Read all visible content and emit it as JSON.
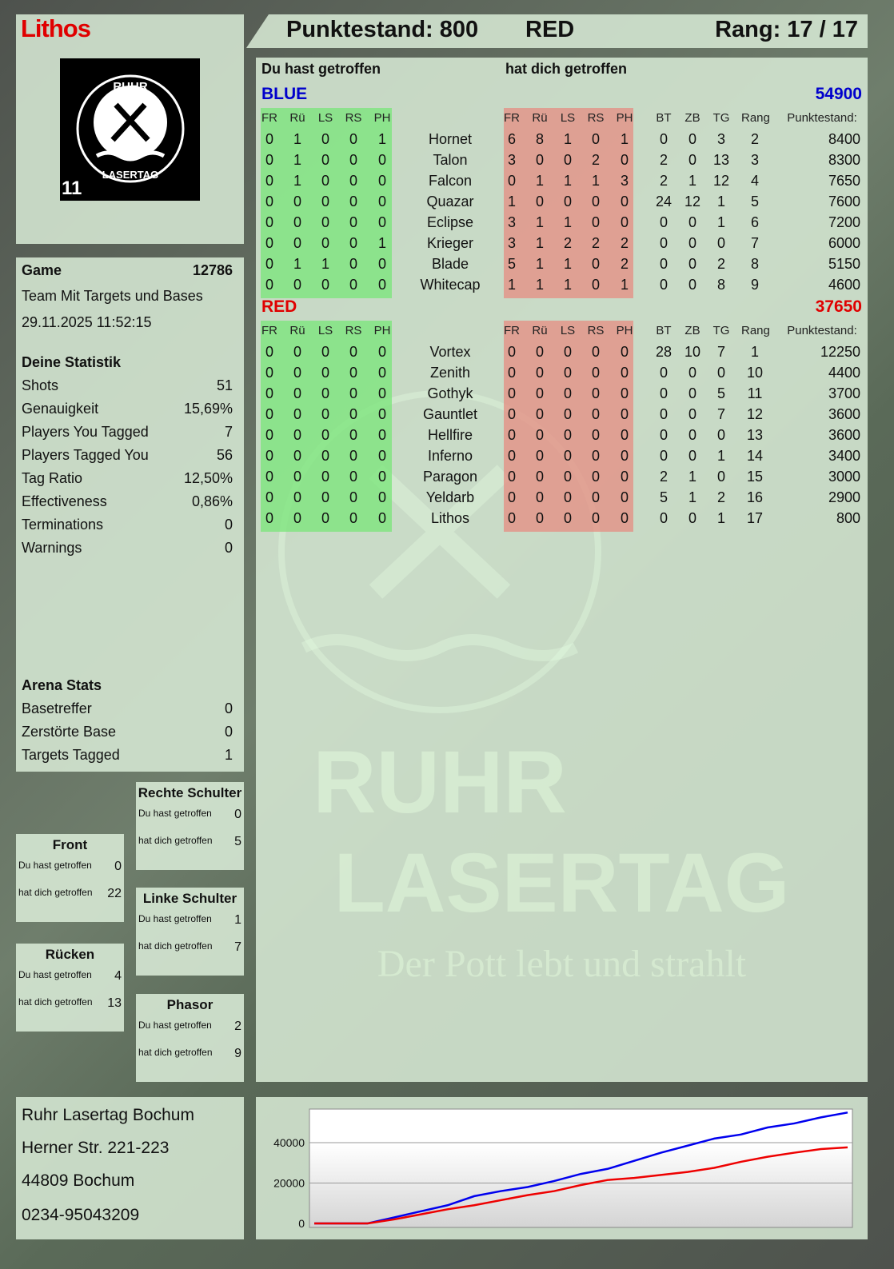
{
  "player": {
    "name": "Lithos",
    "logo_text": "RUHR LASERTAG",
    "logo_number": "11"
  },
  "header": {
    "score_label": "Punktestand: 800",
    "team": "RED",
    "rank_label": "Rang: 17 / 17"
  },
  "columns": {
    "hit_you": "Du hast getroffen",
    "hit_by": "hat dich getroffen",
    "zones": [
      "FR",
      "Rü",
      "LS",
      "RS",
      "PH"
    ],
    "stats": [
      "BT",
      "ZB",
      "TG",
      "Rang"
    ],
    "score": "Punktestand:"
  },
  "colors": {
    "blue": "#0000cc",
    "red": "#e00000",
    "green_block": "#78e678",
    "red_block": "#e68c82"
  },
  "teams": [
    {
      "name": "BLUE",
      "total": "54900",
      "color": "#0000cc",
      "players": [
        {
          "name": "Hornet",
          "you": [
            0,
            1,
            0,
            0,
            1
          ],
          "them": [
            6,
            8,
            1,
            0,
            1
          ],
          "stats": [
            0,
            0,
            3,
            2
          ],
          "score": "8400"
        },
        {
          "name": "Talon",
          "you": [
            0,
            1,
            0,
            0,
            0
          ],
          "them": [
            3,
            0,
            0,
            2,
            0
          ],
          "stats": [
            2,
            0,
            13,
            3
          ],
          "score": "8300"
        },
        {
          "name": "Falcon",
          "you": [
            0,
            1,
            0,
            0,
            0
          ],
          "them": [
            0,
            1,
            1,
            1,
            3
          ],
          "stats": [
            2,
            1,
            12,
            4
          ],
          "score": "7650"
        },
        {
          "name": "Quazar",
          "you": [
            0,
            0,
            0,
            0,
            0
          ],
          "them": [
            1,
            0,
            0,
            0,
            0
          ],
          "stats": [
            24,
            12,
            1,
            5
          ],
          "score": "7600"
        },
        {
          "name": "Eclipse",
          "you": [
            0,
            0,
            0,
            0,
            0
          ],
          "them": [
            3,
            1,
            1,
            0,
            0
          ],
          "stats": [
            0,
            0,
            1,
            6
          ],
          "score": "7200"
        },
        {
          "name": "Krieger",
          "you": [
            0,
            0,
            0,
            0,
            1
          ],
          "them": [
            3,
            1,
            2,
            2,
            2
          ],
          "stats": [
            0,
            0,
            0,
            7
          ],
          "score": "6000"
        },
        {
          "name": "Blade",
          "you": [
            0,
            1,
            1,
            0,
            0
          ],
          "them": [
            5,
            1,
            1,
            0,
            2
          ],
          "stats": [
            0,
            0,
            2,
            8
          ],
          "score": "5150"
        },
        {
          "name": "Whitecap",
          "you": [
            0,
            0,
            0,
            0,
            0
          ],
          "them": [
            1,
            1,
            1,
            0,
            1
          ],
          "stats": [
            0,
            0,
            8,
            9
          ],
          "score": "4600"
        }
      ]
    },
    {
      "name": "RED",
      "total": "37650",
      "color": "#e00000",
      "players": [
        {
          "name": "Vortex",
          "you": [
            0,
            0,
            0,
            0,
            0
          ],
          "them": [
            0,
            0,
            0,
            0,
            0
          ],
          "stats": [
            28,
            10,
            7,
            1
          ],
          "score": "12250"
        },
        {
          "name": "Zenith",
          "you": [
            0,
            0,
            0,
            0,
            0
          ],
          "them": [
            0,
            0,
            0,
            0,
            0
          ],
          "stats": [
            0,
            0,
            0,
            10
          ],
          "score": "4400"
        },
        {
          "name": "Gothyk",
          "you": [
            0,
            0,
            0,
            0,
            0
          ],
          "them": [
            0,
            0,
            0,
            0,
            0
          ],
          "stats": [
            0,
            0,
            5,
            11
          ],
          "score": "3700"
        },
        {
          "name": "Gauntlet",
          "you": [
            0,
            0,
            0,
            0,
            0
          ],
          "them": [
            0,
            0,
            0,
            0,
            0
          ],
          "stats": [
            0,
            0,
            7,
            12
          ],
          "score": "3600"
        },
        {
          "name": "Hellfire",
          "you": [
            0,
            0,
            0,
            0,
            0
          ],
          "them": [
            0,
            0,
            0,
            0,
            0
          ],
          "stats": [
            0,
            0,
            0,
            13
          ],
          "score": "3600"
        },
        {
          "name": "Inferno",
          "you": [
            0,
            0,
            0,
            0,
            0
          ],
          "them": [
            0,
            0,
            0,
            0,
            0
          ],
          "stats": [
            0,
            0,
            1,
            14
          ],
          "score": "3400"
        },
        {
          "name": "Paragon",
          "you": [
            0,
            0,
            0,
            0,
            0
          ],
          "them": [
            0,
            0,
            0,
            0,
            0
          ],
          "stats": [
            2,
            1,
            0,
            15
          ],
          "score": "3000"
        },
        {
          "name": "Yeldarb",
          "you": [
            0,
            0,
            0,
            0,
            0
          ],
          "them": [
            0,
            0,
            0,
            0,
            0
          ],
          "stats": [
            5,
            1,
            2,
            16
          ],
          "score": "2900"
        },
        {
          "name": "Lithos",
          "you": [
            0,
            0,
            0,
            0,
            0
          ],
          "them": [
            0,
            0,
            0,
            0,
            0
          ],
          "stats": [
            0,
            0,
            1,
            17
          ],
          "score": "800"
        }
      ]
    }
  ],
  "game": {
    "label": "Game",
    "id": "12786",
    "mode": "Team Mit Targets und Bases",
    "datetime": "29.11.2025 11:52:15"
  },
  "stats": {
    "title": "Deine Statistik",
    "rows": [
      {
        "label": "Shots",
        "value": "51"
      },
      {
        "label": "Genauigkeit",
        "value": "15,69%"
      },
      {
        "label": "Players You Tagged",
        "value": "7"
      },
      {
        "label": "Players Tagged You",
        "value": "56"
      },
      {
        "label": "Tag Ratio",
        "value": "12,50%"
      },
      {
        "label": "Effectiveness",
        "value": "0,86%"
      },
      {
        "label": "Terminations",
        "value": "0"
      },
      {
        "label": "Warnings",
        "value": "0"
      }
    ]
  },
  "arena": {
    "title": "Arena Stats",
    "rows": [
      {
        "label": "Basetreffer",
        "value": "0"
      },
      {
        "label": "Zerstörte Base",
        "value": "0"
      },
      {
        "label": "Targets Tagged",
        "value": "1"
      }
    ]
  },
  "zones": [
    {
      "title": "Rechte Schulter",
      "you_label": "Du hast getroffen",
      "you": "0",
      "them_label": "hat dich getroffen",
      "them": "5"
    },
    {
      "title": "Front",
      "you_label": "Du hast getroffen",
      "you": "0",
      "them_label": "hat dich getroffen",
      "them": "22"
    },
    {
      "title": "Linke Schulter",
      "you_label": "Du hast getroffen",
      "you": "1",
      "them_label": "hat dich getroffen",
      "them": "7"
    },
    {
      "title": "Rücken",
      "you_label": "Du hast getroffen",
      "you": "4",
      "them_label": "hat dich getroffen",
      "them": "13"
    },
    {
      "title": "Phasor",
      "you_label": "Du hast getroffen",
      "you": "2",
      "them_label": "hat dich getroffen",
      "them": "9"
    }
  ],
  "address": {
    "line1": "Ruhr Lasertag Bochum",
    "line2": "Herner Str. 221-223",
    "line3": "44809 Bochum",
    "phone": "0234-95043209"
  },
  "watermark": {
    "line1": "RUHR",
    "line2": "LASERTAG",
    "slogan": "Der Pott lebt und strahlt"
  },
  "chart_data": {
    "type": "line",
    "title": "",
    "xlabel": "",
    "ylabel": "",
    "ylim": [
      0,
      56600
    ],
    "yticks": [
      "0",
      "20000",
      "40000"
    ],
    "grid": true,
    "x": [
      0,
      1,
      2,
      3,
      4,
      5,
      6,
      7,
      8,
      9,
      10,
      11,
      12,
      13,
      14,
      15,
      16,
      17,
      18,
      19,
      20
    ],
    "series": [
      {
        "color": "#0000ee",
        "values": [
          0,
          0,
          0,
          3000,
          6000,
          9000,
          13500,
          16000,
          18000,
          21000,
          24500,
          27000,
          31000,
          35000,
          38500,
          42000,
          44000,
          47500,
          49500,
          52500,
          54900
        ]
      },
      {
        "color": "#ee0000",
        "values": [
          0,
          0,
          0,
          2000,
          4500,
          7000,
          9000,
          11500,
          14000,
          16000,
          19000,
          21500,
          22500,
          24000,
          25500,
          27500,
          30500,
          33000,
          35000,
          36800,
          37650
        ]
      }
    ]
  }
}
